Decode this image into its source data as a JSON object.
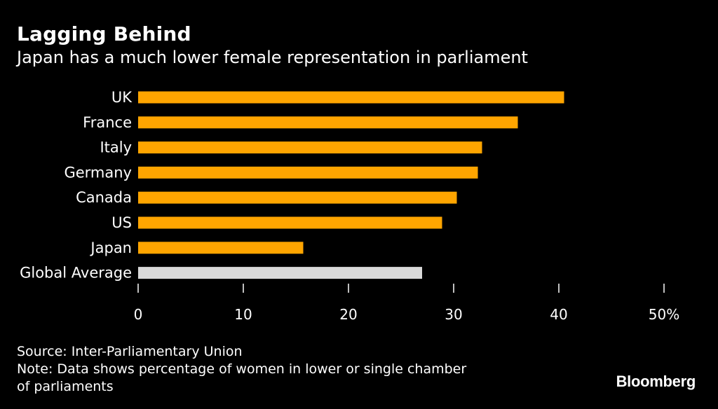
{
  "header": {
    "title": "Lagging Behind",
    "subtitle": "Japan has a much lower female representation in parliament"
  },
  "footer": {
    "source": "Source: Inter-Parliamentary Union",
    "note_line1": "Note: Data shows percentage of women in lower or single chamber",
    "note_line2": "of parliaments"
  },
  "brand": {
    "name": "Bloomberg"
  },
  "colors": {
    "background": "#000000",
    "bar": "#FFA500",
    "highlight_bar": "#D9D9D9",
    "text": "#FFFFFF"
  },
  "chart_data": {
    "type": "bar",
    "orientation": "horizontal",
    "categories": [
      "UK",
      "France",
      "Italy",
      "Germany",
      "Canada",
      "US",
      "Japan",
      "Global Average"
    ],
    "values": [
      40.5,
      36.1,
      32.7,
      32.3,
      30.3,
      28.9,
      15.7,
      27.0
    ],
    "highlight_category": "Global Average",
    "xlim": [
      0,
      50
    ],
    "xticks": [
      0,
      10,
      20,
      30,
      40,
      50
    ],
    "xtick_labels": [
      "0",
      "10",
      "20",
      "30",
      "40",
      "50%"
    ],
    "grid": false,
    "legend": "none"
  }
}
